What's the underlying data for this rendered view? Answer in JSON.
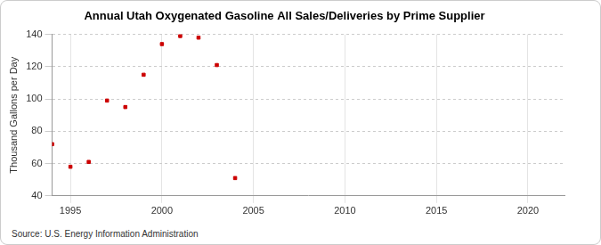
{
  "chart_data": {
    "type": "scatter",
    "title": "Annual Utah Oxygenated Gasoline All Sales/Deliveries by Prime Supplier",
    "y_label": "Thousand Gallons per Day",
    "source": "Source: U.S. Energy Information Administration",
    "x": [
      1994,
      1995,
      1996,
      1997,
      1998,
      1999,
      2000,
      2001,
      2002,
      2003,
      2004
    ],
    "values": [
      72,
      58,
      61,
      99,
      95,
      115,
      134,
      139,
      138,
      121,
      51
    ],
    "color": "#cc0000",
    "marker": "square",
    "xlim": [
      1994,
      2022
    ],
    "xticks": [
      1995,
      2000,
      2005,
      2010,
      2015,
      2020
    ],
    "ylim": [
      40,
      140
    ],
    "yticks": [
      40,
      60,
      80,
      100,
      120,
      140
    ],
    "grid": true
  }
}
